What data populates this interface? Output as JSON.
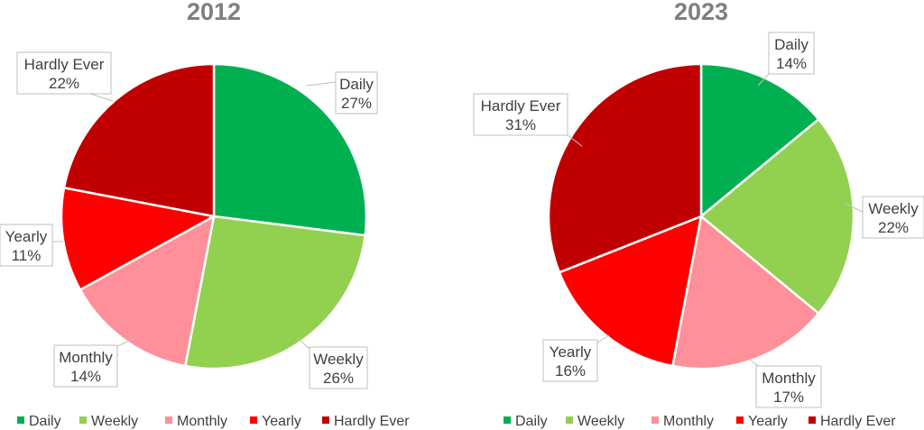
{
  "chart_data": [
    {
      "type": "pie",
      "title": "2012",
      "categories": [
        "Daily",
        "Weekly",
        "Monthly",
        "Yearly",
        "Hardly Ever"
      ],
      "values": [
        27,
        26,
        14,
        11,
        22
      ],
      "value_labels": [
        "27%",
        "26%",
        "14%",
        "11%",
        "22%"
      ],
      "colors": [
        "#00b050",
        "#92d050",
        "#ff8f99",
        "#ff0000",
        "#c00000"
      ],
      "legend": "bottom"
    },
    {
      "type": "pie",
      "title": "2023",
      "categories": [
        "Daily",
        "Weekly",
        "Monthly",
        "Yearly",
        "Hardly Ever"
      ],
      "values": [
        14,
        22,
        17,
        16,
        31
      ],
      "value_labels": [
        "14%",
        "22%",
        "17%",
        "16%",
        "31%"
      ],
      "colors": [
        "#00b050",
        "#92d050",
        "#ff8f99",
        "#ff0000",
        "#c00000"
      ],
      "legend": "bottom"
    }
  ]
}
